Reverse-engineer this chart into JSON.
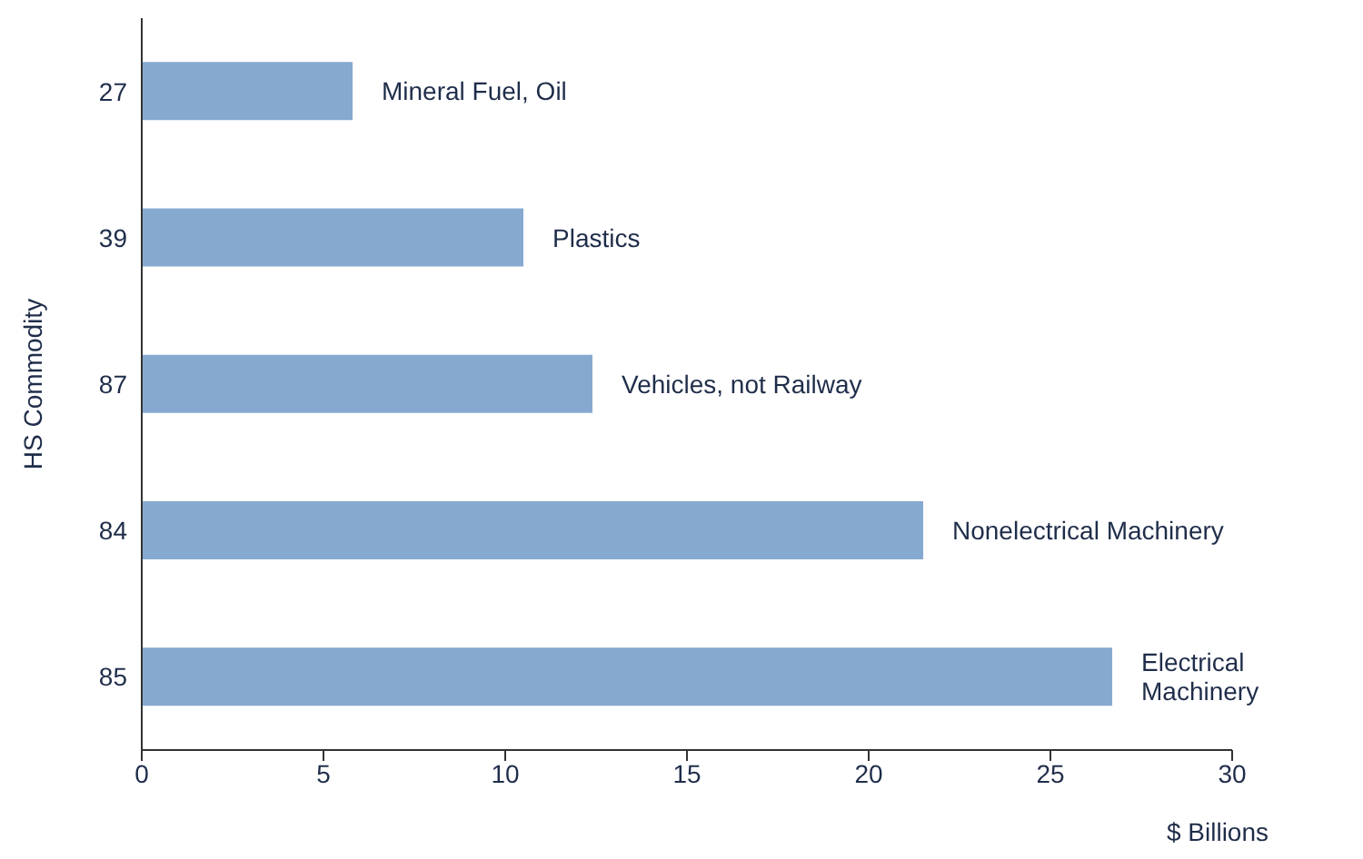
{
  "chart_data": {
    "type": "bar",
    "orientation": "horizontal",
    "xlabel": "$ Billions",
    "ylabel": "HS Commodity",
    "categories": [
      "27",
      "39",
      "87",
      "84",
      "85"
    ],
    "values": [
      5.8,
      10.5,
      12.4,
      21.5,
      26.7
    ],
    "color": "#86a9d0",
    "xlim": [
      0,
      30
    ],
    "xticks": [
      0,
      5,
      10,
      15,
      20,
      25,
      30
    ],
    "grid": false,
    "legend": false,
    "annotations": [
      {
        "text": "Mineral Fuel, Oil",
        "x": 5.8,
        "y": "27"
      },
      {
        "text": "Plastics",
        "x": 10.5,
        "y": "39"
      },
      {
        "text": "Vehicles, not Railway",
        "x": 12.4,
        "y": "87"
      },
      {
        "text": "Nonelectrical Machinery",
        "x": 21.5,
        "y": "84"
      },
      {
        "text": "Electrical Machinery",
        "x": 26.7,
        "y": "85"
      }
    ]
  }
}
